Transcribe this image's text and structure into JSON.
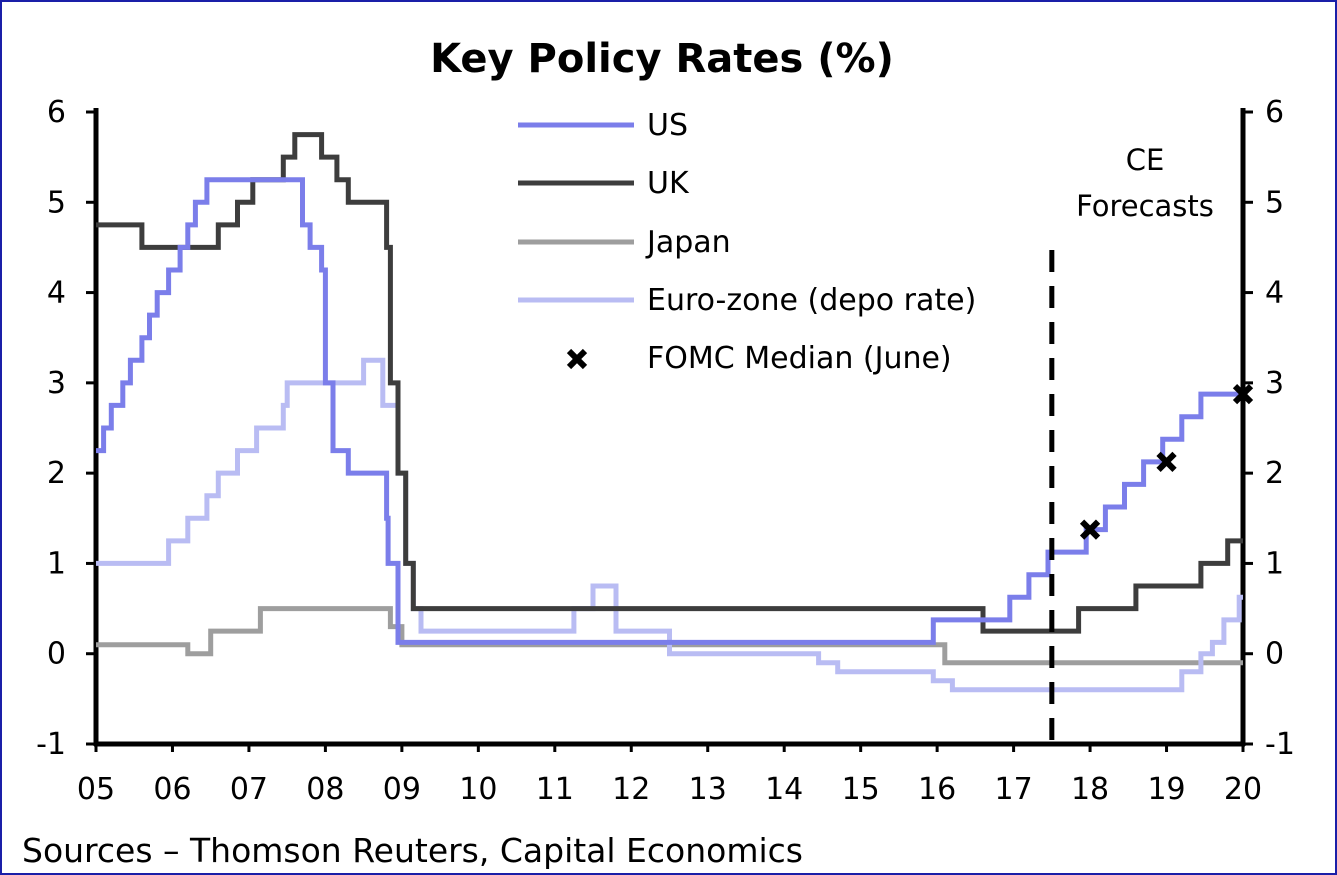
{
  "chart_data": {
    "type": "line",
    "title": "Key Policy Rates (%)",
    "source": "Sources – Thomson Reuters, Capital Economics",
    "xlabel": "",
    "ylabel": "",
    "xlim": [
      2005,
      2020
    ],
    "ylim": [
      -1,
      6
    ],
    "x_tick_labels": [
      "05",
      "06",
      "07",
      "08",
      "09",
      "10",
      "11",
      "12",
      "13",
      "14",
      "15",
      "16",
      "17",
      "18",
      "19",
      "20"
    ],
    "y_tick_labels": [
      "-1",
      "0",
      "1",
      "2",
      "3",
      "4",
      "5",
      "6"
    ],
    "forecast_marker": {
      "x": 2017.5,
      "label_line1": "CE",
      "label_line2": "Forecasts"
    },
    "legend_placement": "top-center",
    "series": [
      {
        "name": "US",
        "color": "#7b7eea",
        "step": true,
        "points": [
          [
            2005.0,
            2.25
          ],
          [
            2005.1,
            2.5
          ],
          [
            2005.2,
            2.75
          ],
          [
            2005.35,
            3.0
          ],
          [
            2005.45,
            3.25
          ],
          [
            2005.6,
            3.5
          ],
          [
            2005.7,
            3.75
          ],
          [
            2005.8,
            4.0
          ],
          [
            2005.95,
            4.25
          ],
          [
            2006.1,
            4.5
          ],
          [
            2006.2,
            4.75
          ],
          [
            2006.3,
            5.0
          ],
          [
            2006.45,
            5.25
          ],
          [
            2007.7,
            4.75
          ],
          [
            2007.8,
            4.5
          ],
          [
            2007.95,
            4.25
          ],
          [
            2008.0,
            3.0
          ],
          [
            2008.1,
            2.25
          ],
          [
            2008.3,
            2.0
          ],
          [
            2008.8,
            1.5
          ],
          [
            2008.82,
            1.0
          ],
          [
            2008.95,
            0.125
          ],
          [
            2015.95,
            0.375
          ],
          [
            2016.95,
            0.625
          ],
          [
            2017.2,
            0.875
          ],
          [
            2017.45,
            1.125
          ],
          [
            2017.95,
            1.375
          ],
          [
            2018.2,
            1.625
          ],
          [
            2018.45,
            1.875
          ],
          [
            2018.7,
            2.125
          ],
          [
            2018.95,
            2.375
          ],
          [
            2019.2,
            2.625
          ],
          [
            2019.45,
            2.875
          ],
          [
            2020.0,
            2.875
          ]
        ]
      },
      {
        "name": "UK",
        "color": "#3d3d3d",
        "step": true,
        "points": [
          [
            2005.0,
            4.75
          ],
          [
            2005.6,
            4.5
          ],
          [
            2006.6,
            4.75
          ],
          [
            2006.85,
            5.0
          ],
          [
            2007.05,
            5.25
          ],
          [
            2007.45,
            5.5
          ],
          [
            2007.6,
            5.75
          ],
          [
            2007.95,
            5.5
          ],
          [
            2008.15,
            5.25
          ],
          [
            2008.3,
            5.0
          ],
          [
            2008.8,
            4.5
          ],
          [
            2008.85,
            3.0
          ],
          [
            2008.95,
            2.0
          ],
          [
            2009.05,
            1.0
          ],
          [
            2009.15,
            0.5
          ],
          [
            2016.6,
            0.25
          ],
          [
            2017.85,
            0.5
          ],
          [
            2018.6,
            0.75
          ],
          [
            2019.45,
            1.0
          ],
          [
            2019.8,
            1.25
          ],
          [
            2020.0,
            1.25
          ]
        ]
      },
      {
        "name": "Japan",
        "color": "#9e9e9e",
        "step": true,
        "points": [
          [
            2005.0,
            0.1
          ],
          [
            2006.2,
            0.0
          ],
          [
            2006.5,
            0.25
          ],
          [
            2007.15,
            0.5
          ],
          [
            2008.85,
            0.3
          ],
          [
            2009.0,
            0.1
          ],
          [
            2016.1,
            -0.1
          ],
          [
            2020.0,
            -0.1
          ]
        ]
      },
      {
        "name": "Euro-zone (depo rate)",
        "color": "#b9bcf3",
        "step": true,
        "points": [
          [
            2005.0,
            1.0
          ],
          [
            2005.95,
            1.25
          ],
          [
            2006.2,
            1.5
          ],
          [
            2006.45,
            1.75
          ],
          [
            2006.6,
            2.0
          ],
          [
            2006.85,
            2.25
          ],
          [
            2007.1,
            2.5
          ],
          [
            2007.45,
            2.75
          ],
          [
            2007.5,
            3.0
          ],
          [
            2008.5,
            3.25
          ],
          [
            2008.75,
            2.75
          ],
          [
            2008.95,
            2.0
          ],
          [
            2009.05,
            1.0
          ],
          [
            2009.15,
            0.5
          ],
          [
            2009.25,
            0.25
          ],
          [
            2011.25,
            0.5
          ],
          [
            2011.5,
            0.75
          ],
          [
            2011.8,
            0.25
          ],
          [
            2012.5,
            0.0
          ],
          [
            2014.45,
            -0.1
          ],
          [
            2014.7,
            -0.2
          ],
          [
            2015.95,
            -0.3
          ],
          [
            2016.2,
            -0.4
          ],
          [
            2019.2,
            -0.2
          ],
          [
            2019.45,
            0.0
          ],
          [
            2019.6,
            0.125
          ],
          [
            2019.75,
            0.375
          ],
          [
            2019.95,
            0.625
          ],
          [
            2020.0,
            0.625
          ]
        ]
      }
    ],
    "scatter": {
      "name": "FOMC Median (June)",
      "marker": "x",
      "color": "#000000",
      "points": [
        [
          2018.0,
          1.375
        ],
        [
          2019.0,
          2.125
        ],
        [
          2020.0,
          2.875
        ]
      ]
    }
  }
}
